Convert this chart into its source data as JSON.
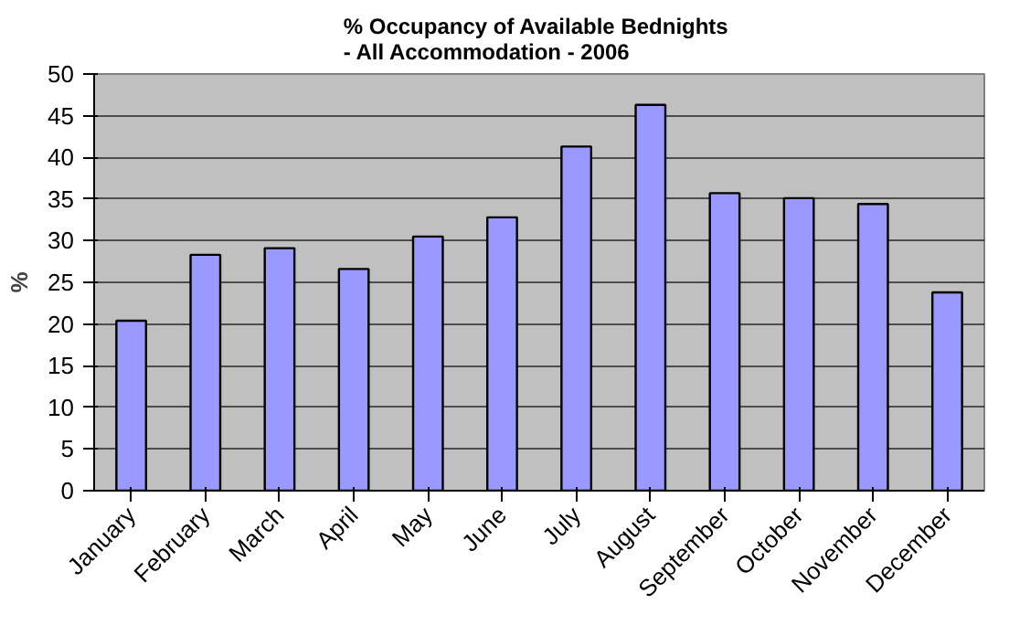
{
  "chart_data": {
    "type": "bar",
    "title": "%  Occupancy of Available Bednights\n- All Accommodation  - 2006",
    "ylabel": "%",
    "categories": [
      "January",
      "February",
      "March",
      "April",
      "May",
      "June",
      "July",
      "August",
      "September",
      "October",
      "November",
      "December"
    ],
    "values": [
      20.4,
      28.3,
      29.1,
      26.6,
      30.5,
      32.8,
      41.3,
      46.3,
      35.7,
      35.1,
      34.4,
      23.8
    ],
    "color": "#9999ff",
    "ylim": [
      0,
      50
    ],
    "yticks": [
      0,
      5,
      10,
      15,
      20,
      25,
      30,
      35,
      40,
      45,
      50
    ],
    "grid": "y"
  }
}
